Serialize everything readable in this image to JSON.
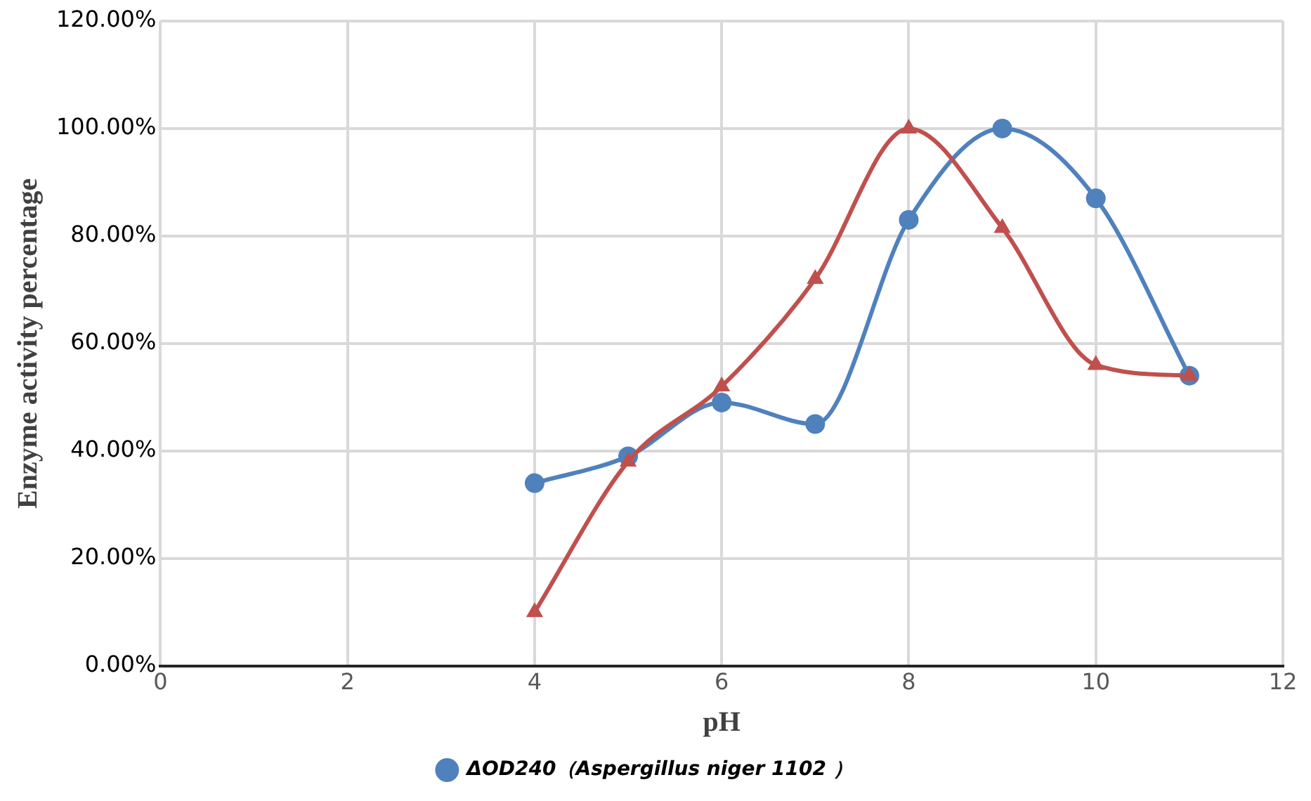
{
  "chart_data": {
    "type": "line",
    "xlabel": "pH",
    "ylabel": "Enzyme activity percentage",
    "x": [
      4,
      5,
      6,
      7,
      8,
      9,
      10,
      11
    ],
    "series": [
      {
        "name": "ΔOD240（Aspergillus niger 1102 ）",
        "color": "#4f81bd",
        "marker": "circle",
        "values": [
          34,
          39,
          49,
          45,
          83,
          100,
          87,
          54
        ]
      },
      {
        "color": "#c0504d",
        "marker": "triangle",
        "values": [
          10,
          38,
          52,
          72,
          100,
          81.5,
          56,
          54
        ]
      }
    ],
    "xlim": [
      0,
      12
    ],
    "xticks": [
      0,
      2,
      4,
      6,
      8,
      10,
      12
    ],
    "ylim": [
      0,
      120
    ],
    "yticks": [
      {
        "value": 0,
        "label": "0.00%"
      },
      {
        "value": 20,
        "label": "20.00%"
      },
      {
        "value": 40,
        "label": "40.00%"
      },
      {
        "value": 60,
        "label": "60.00%"
      },
      {
        "value": 80,
        "label": "80.00%"
      },
      {
        "value": 100,
        "label": "100.00%"
      },
      {
        "value": 120,
        "label": "120.00%"
      }
    ],
    "grid": true,
    "legend": "bottom",
    "line_style": "solid"
  }
}
